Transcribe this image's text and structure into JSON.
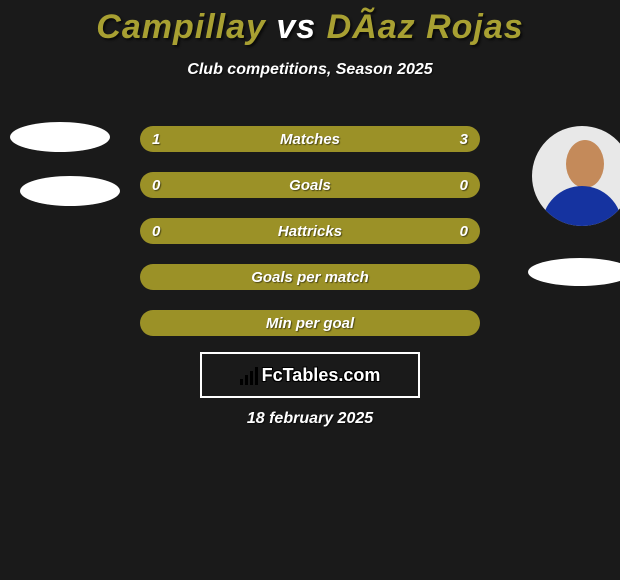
{
  "title": {
    "player1": "Campillay",
    "vs": "vs",
    "player2": "DÃ­az Rojas",
    "color1": "#a8a032",
    "color_vs": "#ffffff",
    "color2": "#a8a032"
  },
  "subtitle": "Club competitions, Season 2025",
  "stats": {
    "bar_color": "#9b9127",
    "text_color": "#ffffff",
    "rows": [
      {
        "label": "Matches",
        "left": "1",
        "right": "3"
      },
      {
        "label": "Goals",
        "left": "0",
        "right": "0"
      },
      {
        "label": "Hattricks",
        "left": "0",
        "right": "0"
      },
      {
        "label": "Goals per match",
        "left": "",
        "right": ""
      },
      {
        "label": "Min per goal",
        "left": "",
        "right": ""
      }
    ]
  },
  "logo": {
    "text": "FcTables.com"
  },
  "date": "18 february 2025",
  "background_color": "#1a1a1a"
}
